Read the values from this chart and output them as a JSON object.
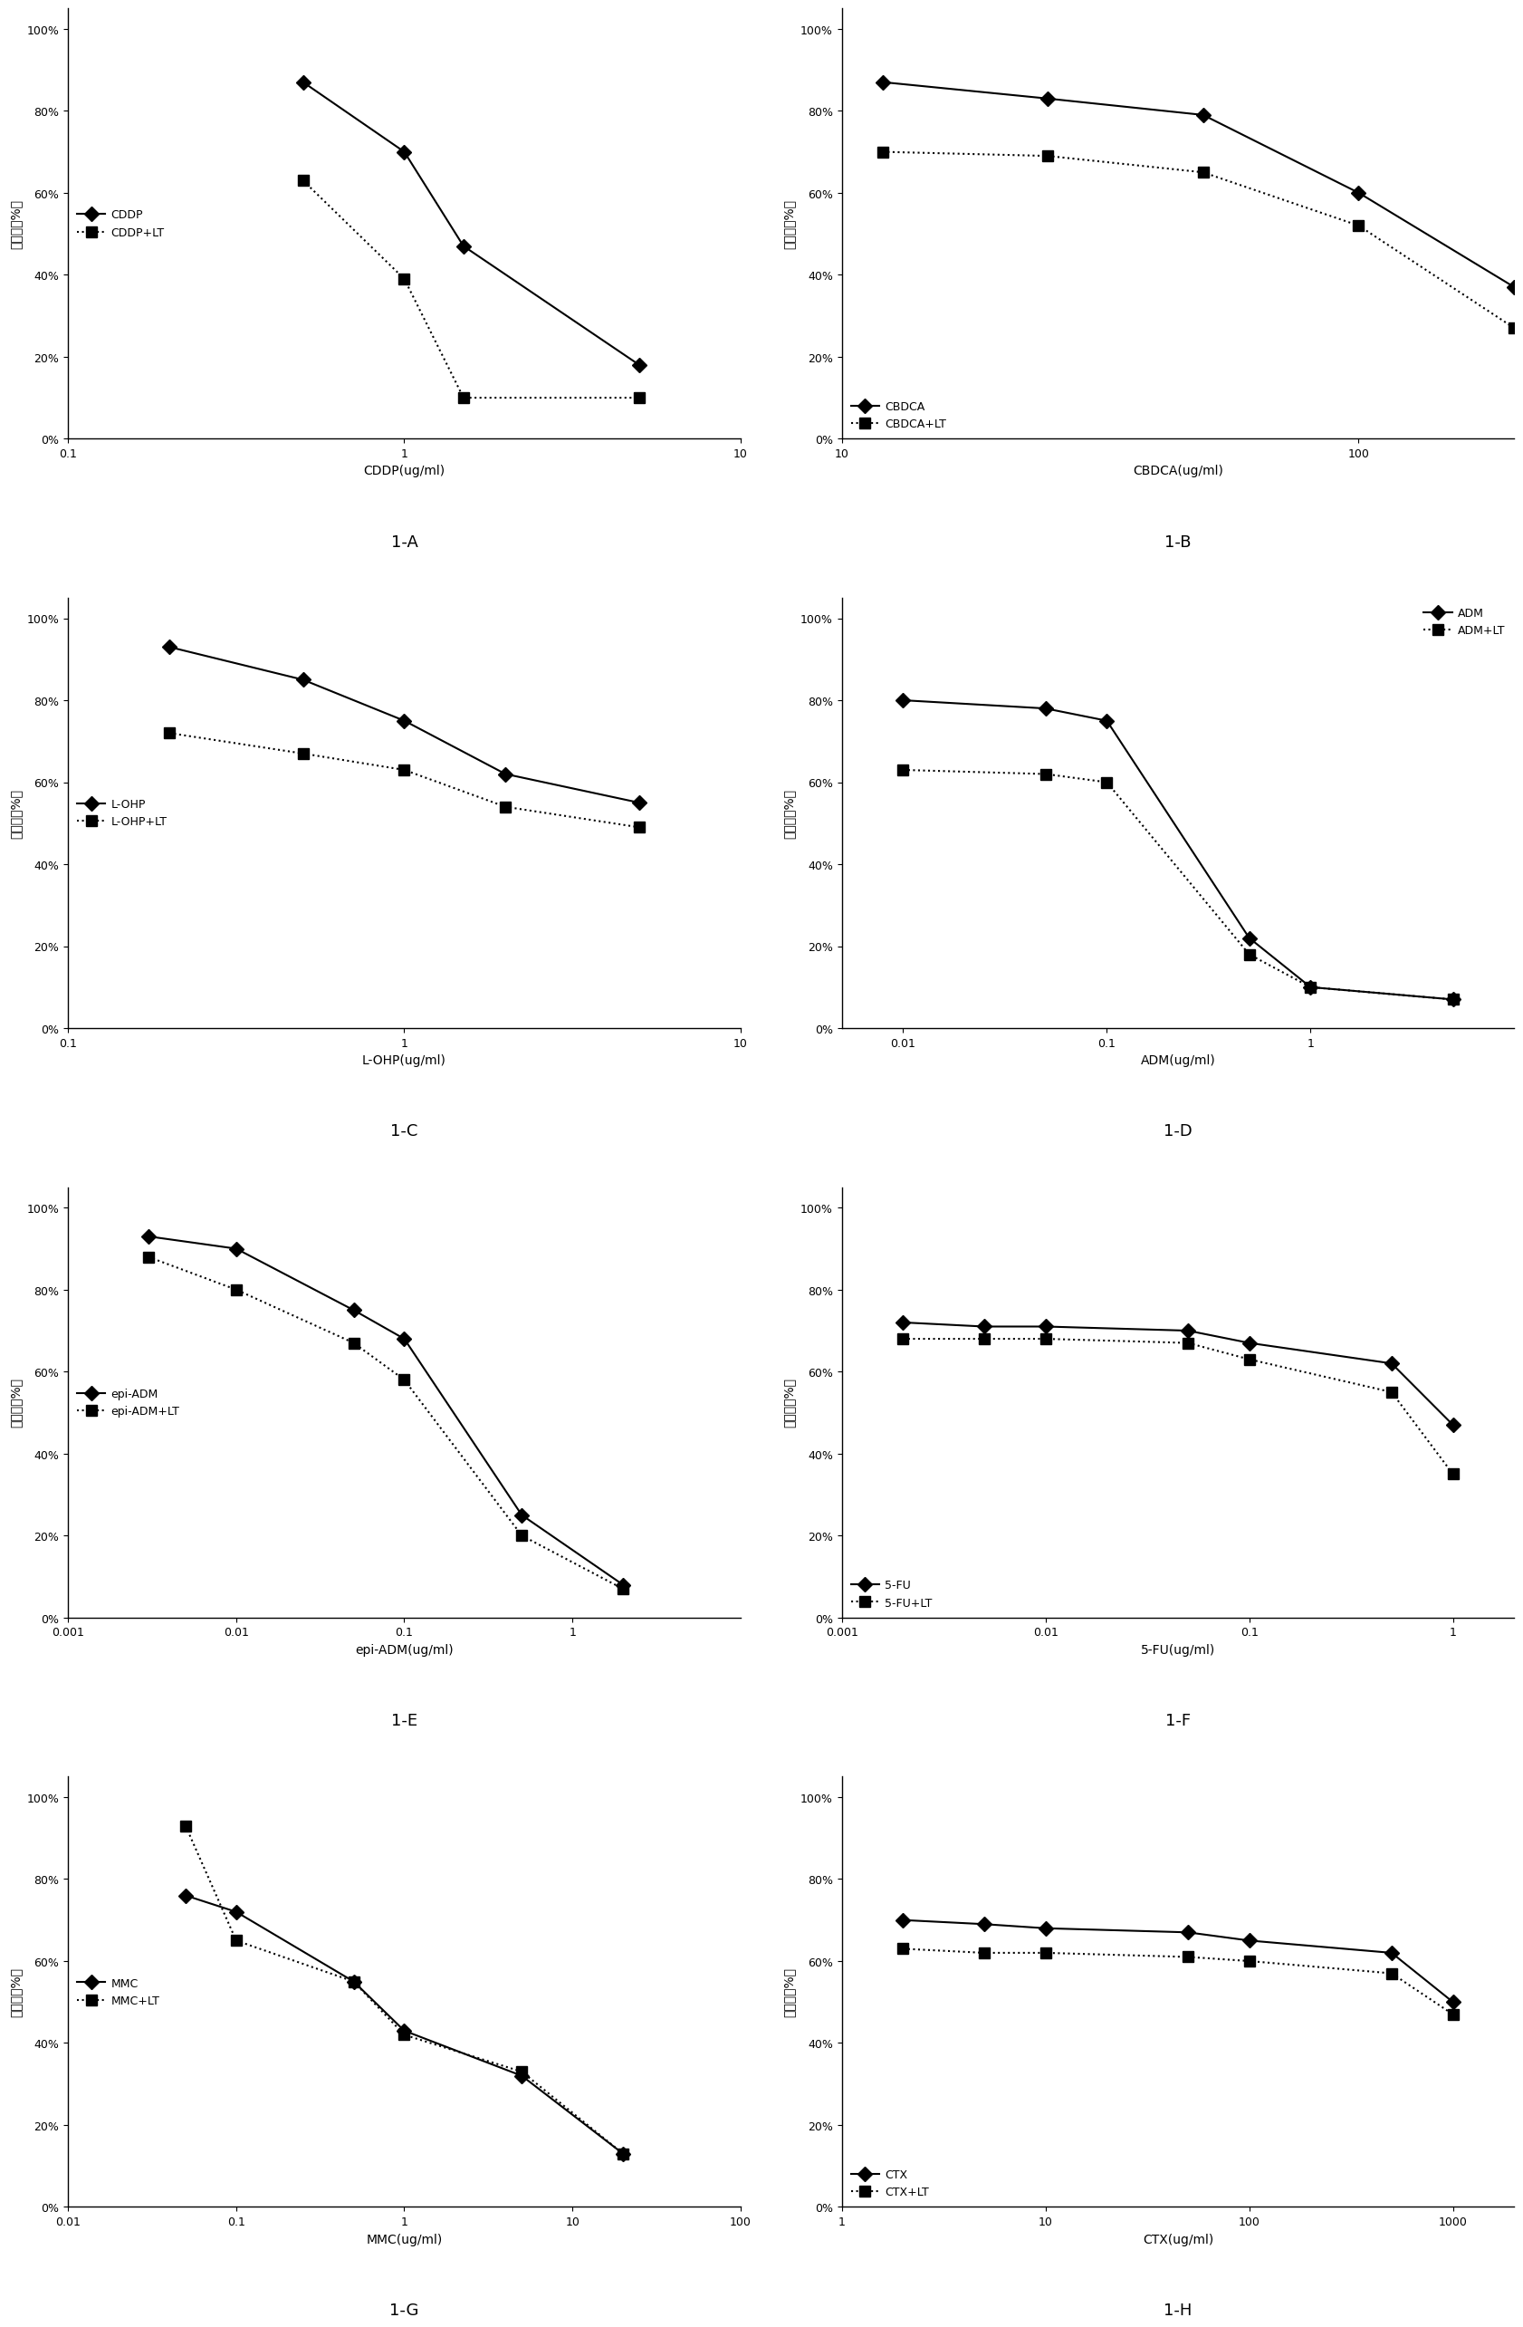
{
  "panels": [
    {
      "label": "1-A",
      "xlabel": "CDDP(ug/ml)",
      "xscale": "log",
      "xlim": [
        0.1,
        10
      ],
      "xticks": [
        0.1,
        1,
        10
      ],
      "xticklabels": [
        "0.1",
        "1",
        "10"
      ],
      "ylim": [
        0,
        105
      ],
      "yticks": [
        0,
        20,
        40,
        60,
        80,
        100
      ],
      "yticklabels": [
        "0%",
        "20%",
        "40%",
        "60%",
        "80%",
        "100%"
      ],
      "series": [
        {
          "label": "CDDP",
          "x": [
            0.5,
            1.0,
            1.5,
            5.0
          ],
          "y": [
            87,
            70,
            47,
            18
          ],
          "marker": "D",
          "linestyle": "-",
          "color": "#000000"
        },
        {
          "label": "CDDP+LT",
          "x": [
            0.5,
            1.0,
            1.5,
            5.0
          ],
          "y": [
            63,
            39,
            10,
            10
          ],
          "marker": "s",
          "linestyle": ":",
          "color": "#000000"
        }
      ],
      "legend_loc": "center left",
      "legend_bbox": null
    },
    {
      "label": "1-B",
      "xlabel": "CBDCA(ug/ml)",
      "xscale": "log",
      "xlim": [
        10,
        200
      ],
      "xticks": [
        10,
        100
      ],
      "xticklabels": [
        "10",
        "100"
      ],
      "ylim": [
        0,
        105
      ],
      "yticks": [
        0,
        20,
        40,
        60,
        80,
        100
      ],
      "yticklabels": [
        "0%",
        "20%",
        "40%",
        "60%",
        "80%",
        "100%"
      ],
      "series": [
        {
          "label": "CBDCA",
          "x": [
            12,
            25,
            50,
            100,
            200
          ],
          "y": [
            87,
            83,
            79,
            60,
            37
          ],
          "marker": "D",
          "linestyle": "-",
          "color": "#000000"
        },
        {
          "label": "CBDCA+LT",
          "x": [
            12,
            25,
            50,
            100,
            200
          ],
          "y": [
            70,
            69,
            65,
            52,
            27
          ],
          "marker": "s",
          "linestyle": ":",
          "color": "#000000"
        }
      ],
      "legend_loc": "lower left",
      "legend_bbox": null
    },
    {
      "label": "1-C",
      "xlabel": "L-OHP(ug/ml)",
      "xscale": "log",
      "xlim": [
        0.1,
        10
      ],
      "xticks": [
        0.1,
        1,
        10
      ],
      "xticklabels": [
        "0.1",
        "1",
        "10"
      ],
      "ylim": [
        0,
        105
      ],
      "yticks": [
        0,
        20,
        40,
        60,
        80,
        100
      ],
      "yticklabels": [
        "0%",
        "20%",
        "40%",
        "60%",
        "80%",
        "100%"
      ],
      "series": [
        {
          "label": "L-OHP",
          "x": [
            0.2,
            0.5,
            1.0,
            2.0,
            5.0
          ],
          "y": [
            93,
            85,
            75,
            62,
            55
          ],
          "marker": "D",
          "linestyle": "-",
          "color": "#000000"
        },
        {
          "label": "L-OHP+LT",
          "x": [
            0.2,
            0.5,
            1.0,
            2.0,
            5.0
          ],
          "y": [
            72,
            67,
            63,
            54,
            49
          ],
          "marker": "s",
          "linestyle": ":",
          "color": "#000000"
        }
      ],
      "legend_loc": "center left",
      "legend_bbox": null
    },
    {
      "label": "1-D",
      "xlabel": "ADM(ug/ml)",
      "xscale": "log",
      "xlim": [
        0.005,
        10
      ],
      "xticks": [
        0.01,
        0.1,
        1
      ],
      "xticklabels": [
        "0.01",
        "0.1",
        "1"
      ],
      "ylim": [
        0,
        105
      ],
      "yticks": [
        0,
        20,
        40,
        60,
        80,
        100
      ],
      "yticklabels": [
        "0%",
        "20%",
        "40%",
        "60%",
        "80%",
        "100%"
      ],
      "series": [
        {
          "label": "ADM",
          "x": [
            0.01,
            0.05,
            0.1,
            0.5,
            1.0,
            5.0
          ],
          "y": [
            80,
            78,
            75,
            22,
            10,
            7
          ],
          "marker": "D",
          "linestyle": "-",
          "color": "#000000"
        },
        {
          "label": "ADM+LT",
          "x": [
            0.01,
            0.05,
            0.1,
            0.5,
            1.0,
            5.0
          ],
          "y": [
            63,
            62,
            60,
            18,
            10,
            7
          ],
          "marker": "s",
          "linestyle": ":",
          "color": "#000000"
        }
      ],
      "legend_loc": "upper right",
      "legend_bbox": null
    },
    {
      "label": "1-E",
      "xlabel": "epi-ADM(ug/ml)",
      "xscale": "log",
      "xlim": [
        0.001,
        10
      ],
      "xticks": [
        0.001,
        0.01,
        0.1,
        1
      ],
      "xticklabels": [
        "0.001",
        "0.01",
        "0.1",
        "1"
      ],
      "ylim": [
        0,
        105
      ],
      "yticks": [
        0,
        20,
        40,
        60,
        80,
        100
      ],
      "yticklabels": [
        "0%",
        "20%",
        "40%",
        "60%",
        "80%",
        "100%"
      ],
      "series": [
        {
          "label": "epi-ADM",
          "x": [
            0.003,
            0.01,
            0.05,
            0.1,
            0.5,
            2.0
          ],
          "y": [
            93,
            90,
            75,
            68,
            25,
            8
          ],
          "marker": "D",
          "linestyle": "-",
          "color": "#000000"
        },
        {
          "label": "epi-ADM+LT",
          "x": [
            0.003,
            0.01,
            0.05,
            0.1,
            0.5,
            2.0
          ],
          "y": [
            88,
            80,
            67,
            58,
            20,
            7
          ],
          "marker": "s",
          "linestyle": ":",
          "color": "#000000"
        }
      ],
      "legend_loc": "center left",
      "legend_bbox": null
    },
    {
      "label": "1-F",
      "xlabel": "5-FU(ug/ml)",
      "xscale": "log",
      "xlim": [
        0.001,
        2
      ],
      "xticks": [
        0.001,
        0.01,
        0.1,
        1
      ],
      "xticklabels": [
        "0.001",
        "0.01",
        "0.1",
        "1"
      ],
      "ylim": [
        0,
        105
      ],
      "yticks": [
        0,
        20,
        40,
        60,
        80,
        100
      ],
      "yticklabels": [
        "0%",
        "20%",
        "40%",
        "60%",
        "80%",
        "100%"
      ],
      "series": [
        {
          "label": "5-FU",
          "x": [
            0.002,
            0.005,
            0.01,
            0.05,
            0.1,
            0.5,
            1.0
          ],
          "y": [
            72,
            71,
            71,
            70,
            67,
            62,
            47
          ],
          "marker": "D",
          "linestyle": "-",
          "color": "#000000"
        },
        {
          "label": "5-FU+LT",
          "x": [
            0.002,
            0.005,
            0.01,
            0.05,
            0.1,
            0.5,
            1.0
          ],
          "y": [
            68,
            68,
            68,
            67,
            63,
            55,
            35
          ],
          "marker": "s",
          "linestyle": ":",
          "color": "#000000"
        }
      ],
      "legend_loc": "lower left",
      "legend_bbox": null
    },
    {
      "label": "1-G",
      "xlabel": "MMC(ug/ml)",
      "xscale": "log",
      "xlim": [
        0.01,
        100
      ],
      "xticks": [
        0.01,
        0.1,
        1,
        10,
        100
      ],
      "xticklabels": [
        "0.01",
        "0.1",
        "1",
        "10",
        "100"
      ],
      "ylim": [
        0,
        105
      ],
      "yticks": [
        0,
        20,
        40,
        60,
        80,
        100
      ],
      "yticklabels": [
        "0%",
        "20%",
        "40%",
        "60%",
        "80%",
        "100%"
      ],
      "series": [
        {
          "label": "MMC",
          "x": [
            0.05,
            0.1,
            0.5,
            1.0,
            5.0,
            20.0
          ],
          "y": [
            76,
            72,
            55,
            43,
            32,
            13
          ],
          "marker": "D",
          "linestyle": "-",
          "color": "#000000"
        },
        {
          "label": "MMC+LT",
          "x": [
            0.05,
            0.1,
            0.5,
            1.0,
            5.0,
            20.0
          ],
          "y": [
            93,
            65,
            55,
            42,
            33,
            13
          ],
          "marker": "s",
          "linestyle": ":",
          "color": "#000000"
        }
      ],
      "legend_loc": "center left",
      "legend_bbox": null
    },
    {
      "label": "1-H",
      "xlabel": "CTX(ug/ml)",
      "xscale": "log",
      "xlim": [
        1,
        2000
      ],
      "xticks": [
        1,
        10,
        100,
        1000
      ],
      "xticklabels": [
        "1",
        "10",
        "100",
        "1000"
      ],
      "ylim": [
        0,
        105
      ],
      "yticks": [
        0,
        20,
        40,
        60,
        80,
        100
      ],
      "yticklabels": [
        "0%",
        "20%",
        "40%",
        "60%",
        "80%",
        "100%"
      ],
      "series": [
        {
          "label": "CTX",
          "x": [
            2,
            5,
            10,
            50,
            100,
            500,
            1000
          ],
          "y": [
            70,
            69,
            68,
            67,
            65,
            62,
            50
          ],
          "marker": "D",
          "linestyle": "-",
          "color": "#000000"
        },
        {
          "label": "CTX+LT",
          "x": [
            2,
            5,
            10,
            50,
            100,
            500,
            1000
          ],
          "y": [
            63,
            62,
            62,
            61,
            60,
            57,
            47
          ],
          "marker": "s",
          "linestyle": ":",
          "color": "#000000"
        }
      ],
      "legend_loc": "lower left",
      "legend_bbox": null
    }
  ],
  "ylabel": "存活率（%）",
  "background_color": "#ffffff",
  "marker_size": 8,
  "linewidth": 1.5,
  "font_size_label": 10,
  "font_size_tick": 9,
  "font_size_legend": 9,
  "font_size_panel_label": 13
}
